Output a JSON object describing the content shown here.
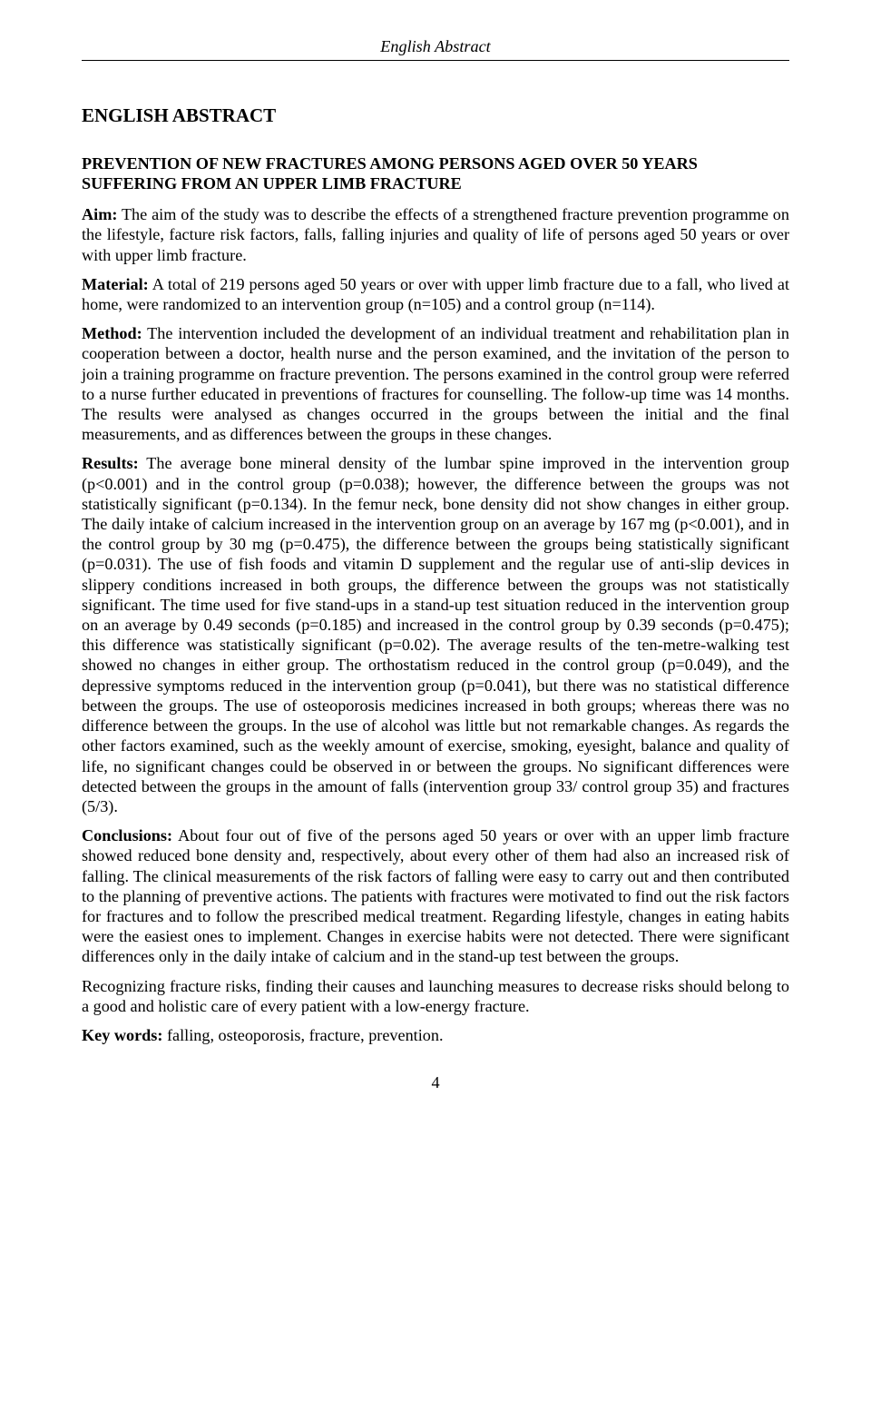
{
  "runningHeader": "English Abstract",
  "mainHeading": "ENGLISH ABSTRACT",
  "title": "PREVENTION OF NEW FRACTURES AMONG PERSONS AGED OVER 50 YEARS SUFFERING FROM AN UPPER LIMB FRACTURE",
  "aim": {
    "label": "Aim:",
    "text": " The aim of the study was to describe the effects of a strengthened fracture prevention programme on the lifestyle, facture risk factors, falls, falling injuries and quality of life of persons aged 50 years or over with upper limb fracture."
  },
  "material": {
    "label": "Material:",
    "text": " A total of 219 persons aged 50 years or over with upper limb fracture due to a fall, who lived at home, were randomized to an intervention group (n=105) and a control group (n=114)."
  },
  "method": {
    "label": "Method:",
    "text": " The intervention included the development of an individual treatment and rehabilitation plan in cooperation between a doctor, health nurse and the person examined, and the invitation of the person to join a training programme on fracture prevention. The persons examined in the control group were referred to a nurse further educated in preventions of fractures for counselling. The follow-up time was 14 months. The results were analysed as changes occurred in the groups between the initial and the final measurements, and as differences between the groups in these changes."
  },
  "results": {
    "label": "Results:",
    "text": " The average bone mineral density of the lumbar spine improved in the intervention group (p<0.001) and in the control group (p=0.038); however, the difference between the groups was not statistically significant (p=0.134). In the femur neck, bone density did not show changes in either group. The daily intake of calcium increased in the intervention group on an average by 167 mg (p<0.001), and in the control group by 30 mg (p=0.475), the difference between the groups being statistically significant (p=0.031). The use of fish foods and vitamin D supplement and the regular use of anti-slip devices in slippery conditions increased in both groups, the difference between the groups was not statistically significant. The time used for five stand-ups in a stand-up test situation reduced in the intervention group on an average by 0.49 seconds (p=0.185) and increased in the control group by 0.39 seconds (p=0.475); this difference was statistically significant (p=0.02). The average results of the ten-metre-walking test showed no changes in either group. The orthostatism reduced in the control group (p=0.049), and the depressive symptoms reduced in the intervention group (p=0.041), but there was no statistical difference between the groups. The use of osteoporosis medicines increased in both groups; whereas there was no difference between the groups. In the use of alcohol was little but not remarkable changes. As regards the other factors examined, such as the weekly amount of exercise, smoking, eyesight, balance and quality of life, no significant changes could be observed in or between the groups. No significant differences were detected between the groups in the amount of falls (intervention group 33/ control group 35) and fractures (5/3)."
  },
  "conclusions": {
    "label": "Conclusions:",
    "text": " About four out of five of the persons aged 50 years or over with an upper limb fracture showed reduced bone density and, respectively, about every other of them had also an increased risk of falling. The clinical measurements of the risk factors of falling were easy to carry out and then contributed to the planning of preventive actions. The patients with fractures were motivated to find out the risk factors for fractures and to follow the prescribed medical treatment. Regarding lifestyle, changes in eating habits were the easiest ones to implement. Changes in exercise habits were not detected. There were significant differences only in the daily intake of calcium and in the stand-up test between the groups."
  },
  "closing": "Recognizing fracture risks, finding their causes and launching measures to decrease risks should belong to a good and holistic care of every patient with a low-energy fracture.",
  "keywords": {
    "label": "Key words:",
    "text": " falling, osteoporosis, fracture, prevention."
  },
  "pageNumber": "4"
}
